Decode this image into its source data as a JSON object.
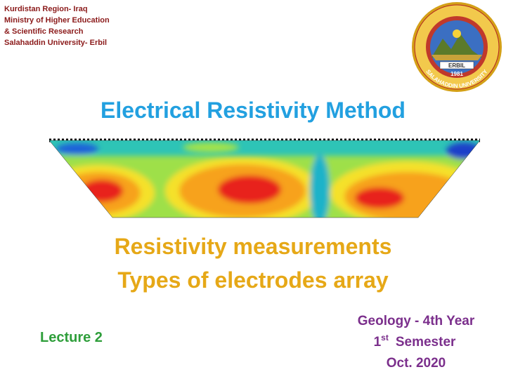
{
  "header": {
    "lines": [
      "Kurdistan Region- Iraq",
      "Ministry of Higher Education",
      "& Scientific Research",
      "Salahaddin University- Erbil"
    ]
  },
  "logo": {
    "city": "ERBIL",
    "year": "1981",
    "name": "SALAHADDIN UNIVERSITY"
  },
  "title": "Electrical Resistivity Method",
  "subtitle": [
    "Resistivity measurements",
    "Types of electrodes array"
  ],
  "lecture": "Lecture  2",
  "info": {
    "course": "Geology - 4th Year",
    "semester_number": "1",
    "semester_suffix": "st",
    "semester_word": "Semester",
    "date": "Oct. 2020"
  }
}
